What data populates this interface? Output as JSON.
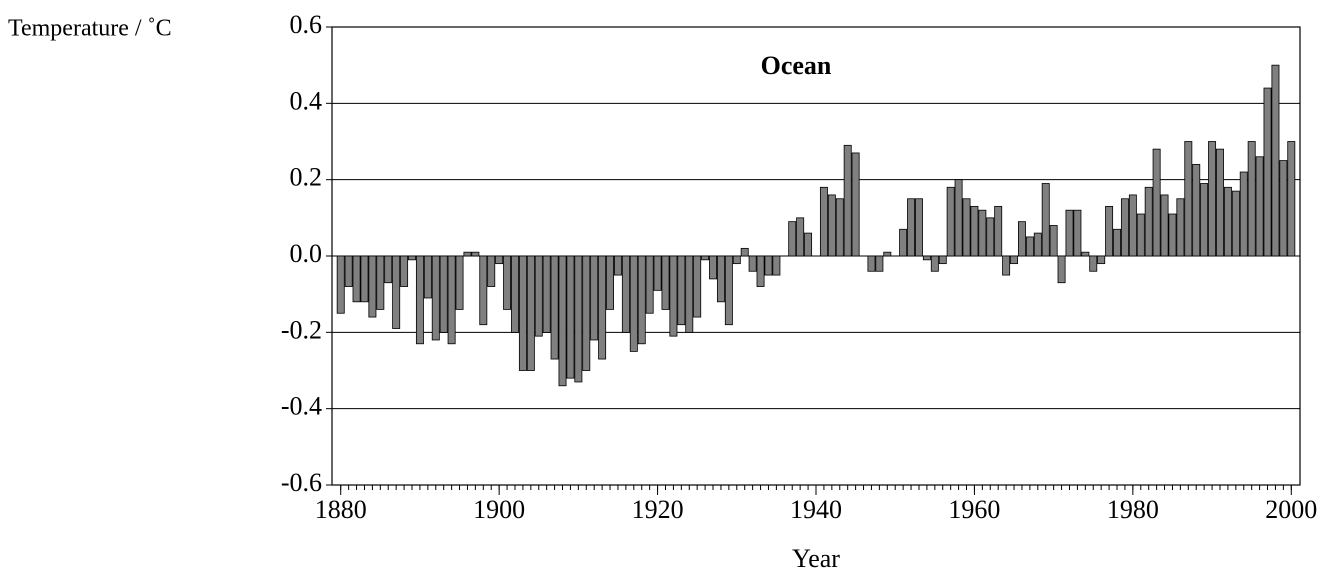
{
  "chart_data": {
    "type": "bar",
    "title": "Ocean",
    "y_label": "Temperature / ˚C",
    "x_label": "Year",
    "x": [
      1880,
      1881,
      1882,
      1883,
      1884,
      1885,
      1886,
      1887,
      1888,
      1889,
      1890,
      1891,
      1892,
      1893,
      1894,
      1895,
      1896,
      1897,
      1898,
      1899,
      1900,
      1901,
      1902,
      1903,
      1904,
      1905,
      1906,
      1907,
      1908,
      1909,
      1910,
      1911,
      1912,
      1913,
      1914,
      1915,
      1916,
      1917,
      1918,
      1919,
      1920,
      1921,
      1922,
      1923,
      1924,
      1925,
      1926,
      1927,
      1928,
      1929,
      1930,
      1931,
      1932,
      1933,
      1934,
      1935,
      1936,
      1937,
      1938,
      1939,
      1940,
      1941,
      1942,
      1943,
      1944,
      1945,
      1946,
      1947,
      1948,
      1949,
      1950,
      1951,
      1952,
      1953,
      1954,
      1955,
      1956,
      1957,
      1958,
      1959,
      1960,
      1961,
      1962,
      1963,
      1964,
      1965,
      1966,
      1967,
      1968,
      1969,
      1970,
      1971,
      1972,
      1973,
      1974,
      1975,
      1976,
      1977,
      1978,
      1979,
      1980,
      1981,
      1982,
      1983,
      1984,
      1985,
      1986,
      1987,
      1988,
      1989,
      1990,
      1991,
      1992,
      1993,
      1994,
      1995,
      1996,
      1997,
      1998,
      1999,
      2000
    ],
    "values": [
      -0.15,
      -0.08,
      -0.12,
      -0.12,
      -0.16,
      -0.14,
      -0.07,
      -0.19,
      -0.08,
      -0.01,
      -0.23,
      -0.11,
      -0.22,
      -0.2,
      -0.23,
      -0.14,
      0.01,
      0.01,
      -0.18,
      -0.08,
      -0.02,
      -0.14,
      -0.2,
      -0.3,
      -0.3,
      -0.21,
      -0.2,
      -0.27,
      -0.34,
      -0.32,
      -0.33,
      -0.3,
      -0.22,
      -0.27,
      -0.14,
      -0.05,
      -0.2,
      -0.25,
      -0.23,
      -0.15,
      -0.09,
      -0.14,
      -0.21,
      -0.18,
      -0.2,
      -0.16,
      -0.01,
      -0.06,
      -0.12,
      -0.18,
      -0.02,
      0.02,
      -0.04,
      -0.08,
      -0.05,
      -0.05,
      0.0,
      0.09,
      0.1,
      0.06,
      0.0,
      0.18,
      0.16,
      0.15,
      0.29,
      0.27,
      0.0,
      -0.04,
      -0.04,
      0.01,
      0.0,
      0.07,
      0.15,
      0.15,
      -0.01,
      -0.04,
      -0.02,
      0.18,
      0.2,
      0.15,
      0.13,
      0.12,
      0.1,
      0.13,
      -0.05,
      -0.02,
      0.09,
      0.05,
      0.06,
      0.19,
      0.08,
      -0.07,
      0.12,
      0.12,
      0.01,
      -0.04,
      -0.02,
      0.13,
      0.07,
      0.15,
      0.16,
      0.11,
      0.18,
      0.28,
      0.16,
      0.11,
      0.15,
      0.3,
      0.24,
      0.19,
      0.3,
      0.28,
      0.18,
      0.17,
      0.22,
      0.3,
      0.26,
      0.44,
      0.5,
      0.25,
      0.3
    ],
    "color": "#808080",
    "xlim": [
      1878.9,
      2001.1
    ],
    "xticks": [
      1880,
      1900,
      1920,
      1940,
      1960,
      1980,
      2000
    ],
    "ylim": [
      -0.6,
      0.6
    ],
    "yticks": [
      -0.6,
      -0.4,
      -0.2,
      {
        "value": 0,
        "label": "0.0"
      },
      0.2,
      0.4,
      0.6
    ],
    "grid": true
  }
}
